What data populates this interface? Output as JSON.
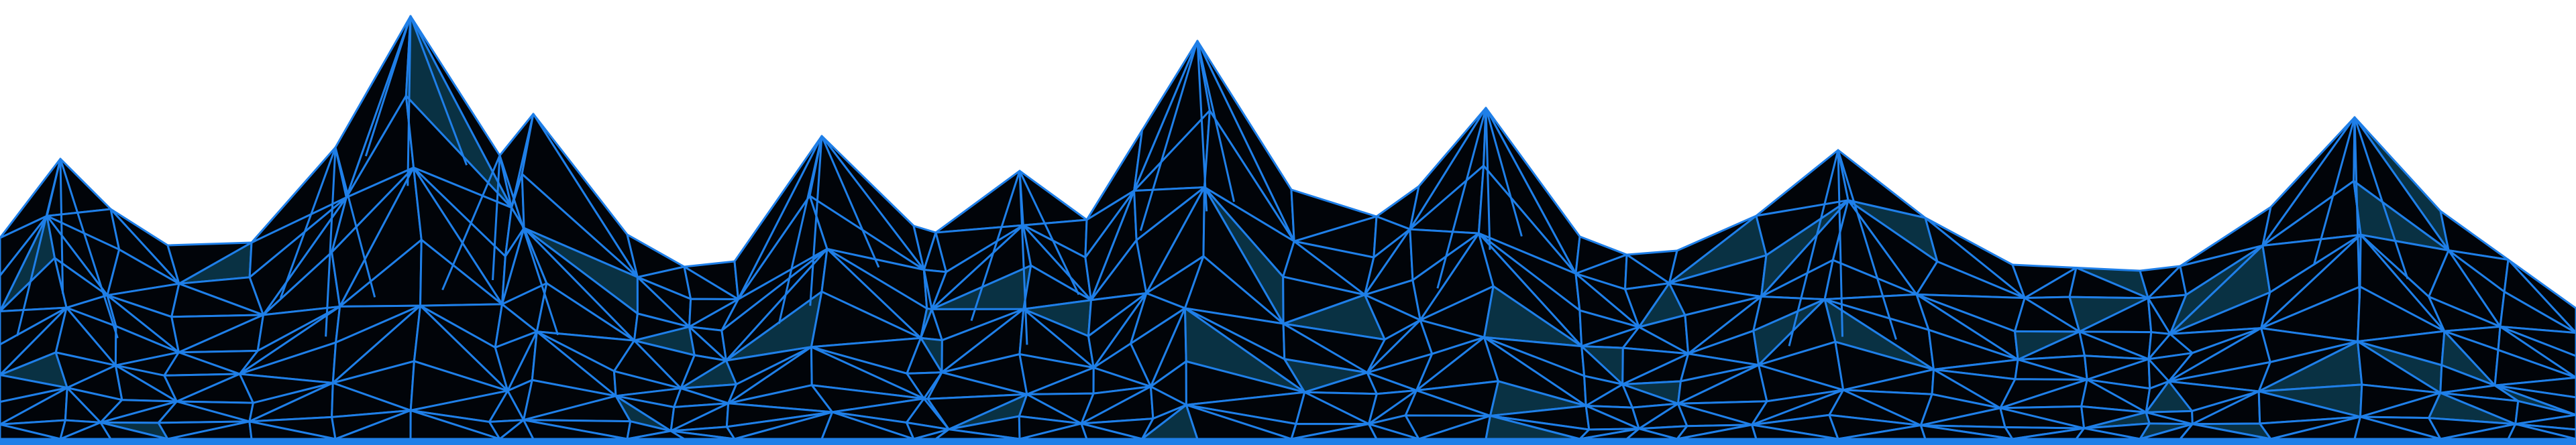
{
  "artwork": {
    "subject": "low-poly-wireframe-mountains",
    "colors": {
      "background": "#ffffff",
      "mountain_fill": "#010409",
      "wire": "#1f7fe8",
      "highlight_face": "#0a3a4e",
      "ground_glow": "#1f7fe8"
    }
  }
}
